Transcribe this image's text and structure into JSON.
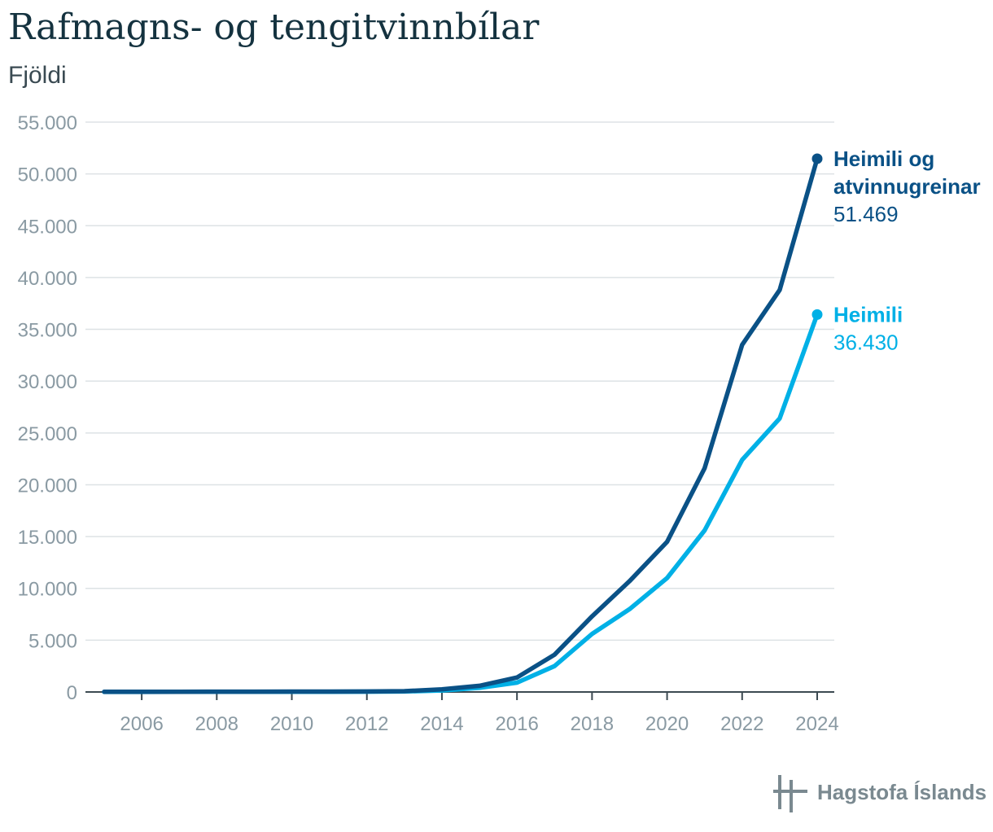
{
  "chart_data": {
    "type": "line",
    "title": "Rafmagns- og tengitvinnbílar",
    "ylabel": "Fjöldi",
    "xlabel": "",
    "x": [
      2005,
      2006,
      2007,
      2008,
      2009,
      2010,
      2011,
      2012,
      2013,
      2014,
      2015,
      2016,
      2017,
      2018,
      2019,
      2020,
      2021,
      2022,
      2023,
      2024
    ],
    "xticks": [
      2006,
      2008,
      2010,
      2012,
      2014,
      2016,
      2018,
      2020,
      2022,
      2024
    ],
    "xtick_labels": [
      "2006",
      "2008",
      "2010",
      "2012",
      "2014",
      "2016",
      "2018",
      "2020",
      "2022",
      "2024"
    ],
    "xlim": [
      2005,
      2024
    ],
    "ylim": [
      0,
      55000
    ],
    "yticks": [
      0,
      5000,
      10000,
      15000,
      20000,
      25000,
      30000,
      35000,
      40000,
      45000,
      50000,
      55000
    ],
    "ytick_labels": [
      "0",
      "5.000",
      "10.000",
      "15.000",
      "20.000",
      "25.000",
      "30.000",
      "35.000",
      "40.000",
      "45.000",
      "50.000",
      "55.000"
    ],
    "grid": true,
    "series": [
      {
        "name": "Heimili og atvinnugreinar",
        "label_lines": [
          "Heimili og",
          "atvinnugreinar"
        ],
        "end_value_label": "51.469",
        "color": "#0a5186",
        "values": [
          20,
          20,
          25,
          30,
          35,
          40,
          40,
          45,
          80,
          250,
          600,
          1400,
          3600,
          7300,
          10700,
          14500,
          21600,
          33500,
          38800,
          51469
        ]
      },
      {
        "name": "Heimili",
        "label_lines": [
          "Heimili"
        ],
        "end_value_label": "36.430",
        "color": "#00b0e6",
        "values": [
          10,
          10,
          15,
          20,
          20,
          25,
          25,
          30,
          50,
          150,
          400,
          900,
          2500,
          5600,
          8000,
          11000,
          15600,
          22400,
          26400,
          36430
        ]
      }
    ]
  },
  "logo": {
    "text": "Hagstofa Íslands",
    "icon": "hagstofa-logo-icon"
  }
}
